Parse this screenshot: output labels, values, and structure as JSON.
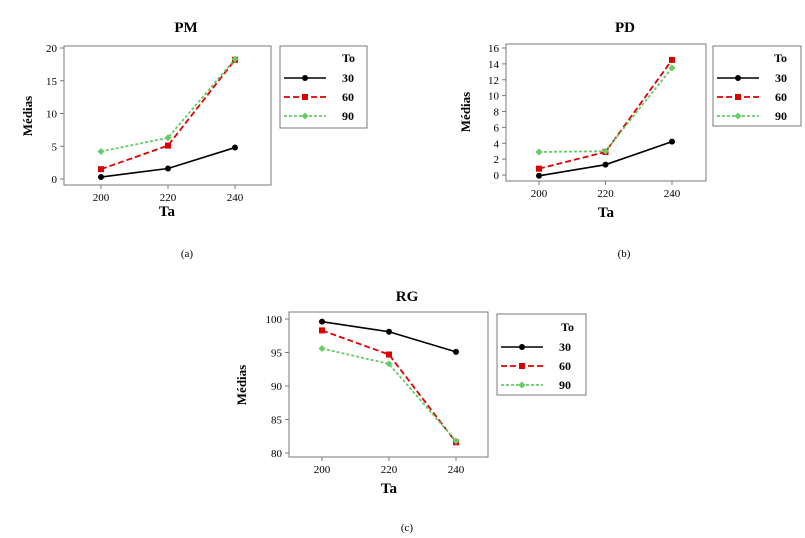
{
  "colors": {
    "s30": "#000000",
    "s60": "#dd0000",
    "s90": "#66cc66",
    "axis": "#7a7a7a",
    "text": "#000000"
  },
  "chart_data": [
    {
      "type": "line",
      "title": "PM",
      "caption": "(a)",
      "xlabel": "Ta",
      "ylabel": "Médias",
      "x": [
        200,
        220,
        240
      ],
      "xticks": [
        "200",
        "220",
        "240"
      ],
      "ylim": [
        0,
        20
      ],
      "yticks": [
        "0",
        "5",
        "10",
        "15",
        "20"
      ],
      "legend_title": "To",
      "legend_position": "right",
      "series": [
        {
          "name": "30",
          "values": [
            0.3,
            1.6,
            4.8
          ]
        },
        {
          "name": "60",
          "values": [
            1.5,
            5.1,
            18.2
          ]
        },
        {
          "name": "90",
          "values": [
            4.2,
            6.3,
            18.3
          ]
        }
      ]
    },
    {
      "type": "line",
      "title": "PD",
      "caption": "(b)",
      "xlabel": "Ta",
      "ylabel": "Médias",
      "x": [
        200,
        220,
        240
      ],
      "xticks": [
        "200",
        "220",
        "240"
      ],
      "ylim": [
        0,
        16
      ],
      "yticks": [
        "0",
        "2",
        "4",
        "6",
        "8",
        "10",
        "12",
        "14",
        "16"
      ],
      "legend_title": "To",
      "legend_position": "right",
      "series": [
        {
          "name": "30",
          "values": [
            -0.1,
            1.3,
            4.2
          ]
        },
        {
          "name": "60",
          "values": [
            0.8,
            2.9,
            14.5
          ]
        },
        {
          "name": "90",
          "values": [
            2.9,
            3.0,
            13.5
          ]
        }
      ]
    },
    {
      "type": "line",
      "title": "RG",
      "caption": "(c)",
      "xlabel": "Ta",
      "ylabel": "Médias",
      "x": [
        200,
        220,
        240
      ],
      "xticks": [
        "200",
        "220",
        "240"
      ],
      "ylim": [
        80,
        100
      ],
      "yticks": [
        "80",
        "85",
        "90",
        "95",
        "100"
      ],
      "legend_title": "To",
      "legend_position": "right",
      "series": [
        {
          "name": "30",
          "values": [
            99.6,
            98.1,
            95.1
          ]
        },
        {
          "name": "60",
          "values": [
            98.3,
            94.7,
            81.6
          ]
        },
        {
          "name": "90",
          "values": [
            95.6,
            93.3,
            81.8
          ]
        }
      ]
    }
  ]
}
